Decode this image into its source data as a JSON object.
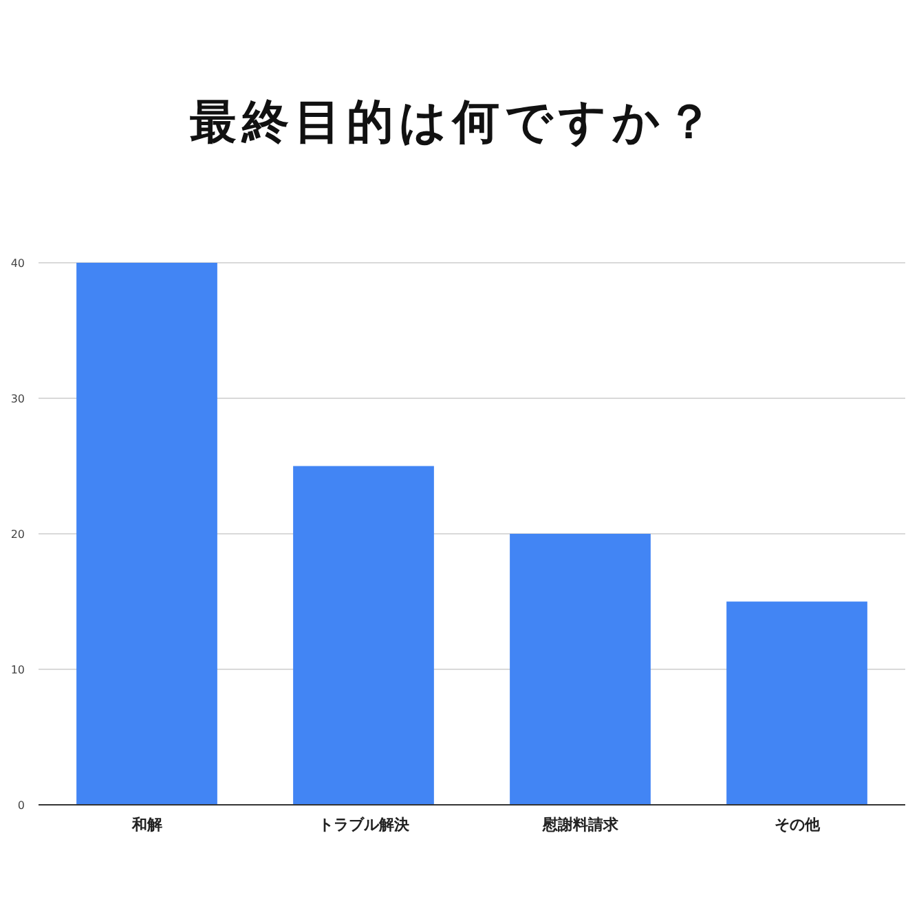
{
  "chart_data": {
    "type": "bar",
    "title": "最終目的は何ですか？",
    "categories": [
      "和解",
      "トラブル解決",
      "慰謝料請求",
      "その他"
    ],
    "values": [
      40,
      25,
      20,
      15
    ],
    "color": "#4285f4",
    "ylim": [
      0,
      40
    ],
    "yticks": [
      0,
      10,
      20,
      30,
      40
    ],
    "grid": "y"
  }
}
